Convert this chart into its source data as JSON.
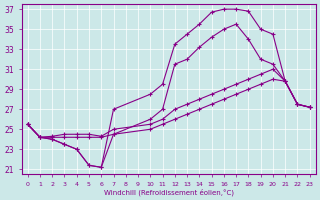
{
  "xlabel": "Windchill (Refroidissement éolien,°C)",
  "bg_color": "#cce8e8",
  "line_color": "#880088",
  "grid_color": "#ffffff",
  "xlim": [
    -0.5,
    23.5
  ],
  "ylim": [
    20.5,
    37.5
  ],
  "yticks": [
    21,
    23,
    25,
    27,
    29,
    31,
    33,
    35,
    37
  ],
  "xticks": [
    0,
    1,
    2,
    3,
    4,
    5,
    6,
    7,
    8,
    9,
    10,
    11,
    12,
    13,
    14,
    15,
    16,
    17,
    18,
    19,
    20,
    21,
    22,
    23
  ],
  "curve1_x": [
    0,
    1,
    2,
    3,
    4,
    5,
    6,
    7,
    10,
    11,
    12,
    13,
    14,
    15,
    16,
    17,
    18,
    19,
    20,
    21,
    22,
    23
  ],
  "curve1_y": [
    25.5,
    24.2,
    24.0,
    23.5,
    23.0,
    21.4,
    21.2,
    27.0,
    28.5,
    29.5,
    33.5,
    34.5,
    35.5,
    36.7,
    37.0,
    37.0,
    36.8,
    35.0,
    34.5,
    29.8,
    27.5,
    27.2
  ],
  "curve2_x": [
    0,
    1,
    2,
    3,
    4,
    5,
    6,
    7,
    10,
    11,
    12,
    13,
    14,
    15,
    16,
    17,
    18,
    19,
    20,
    21,
    22,
    23
  ],
  "curve2_y": [
    25.5,
    24.2,
    24.0,
    23.5,
    23.0,
    21.4,
    21.2,
    24.5,
    26.0,
    27.0,
    31.5,
    32.0,
    33.2,
    34.2,
    35.0,
    35.5,
    34.0,
    32.0,
    31.5,
    29.8,
    27.5,
    27.2
  ],
  "curve3_x": [
    0,
    1,
    2,
    3,
    4,
    5,
    6,
    7,
    10,
    11,
    12,
    13,
    14,
    15,
    16,
    17,
    18,
    19,
    20,
    21,
    22,
    23
  ],
  "curve3_y": [
    25.5,
    24.2,
    24.3,
    24.5,
    24.5,
    24.5,
    24.3,
    25.0,
    25.5,
    26.0,
    27.0,
    27.5,
    28.0,
    28.5,
    29.0,
    29.5,
    30.0,
    30.5,
    31.0,
    29.8,
    27.5,
    27.2
  ],
  "curve4_x": [
    0,
    1,
    2,
    3,
    4,
    5,
    6,
    7,
    10,
    11,
    12,
    13,
    14,
    15,
    16,
    17,
    18,
    19,
    20,
    21,
    22,
    23
  ],
  "curve4_y": [
    25.5,
    24.2,
    24.2,
    24.2,
    24.2,
    24.2,
    24.2,
    24.5,
    25.0,
    25.5,
    26.0,
    26.5,
    27.0,
    27.5,
    28.0,
    28.5,
    29.0,
    29.5,
    30.0,
    29.8,
    27.5,
    27.2
  ]
}
